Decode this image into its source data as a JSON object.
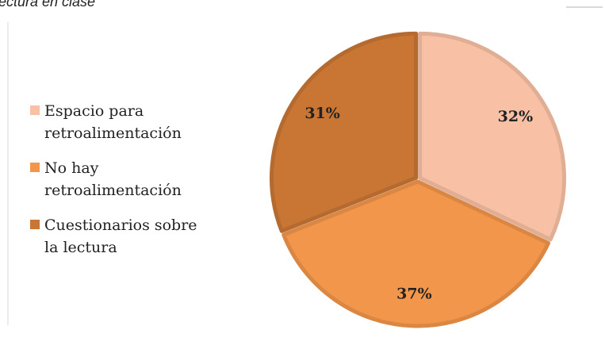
{
  "chart_data": {
    "type": "pie",
    "title": "lectura en clase",
    "categories": [
      "Espacio para retroalimentación",
      "No hay retroalimentación",
      "Cuestionarios sobre la lectura"
    ],
    "legend_lines": [
      [
        "Espacio para",
        "retroalimentación"
      ],
      [
        "No hay",
        "retroalimentación"
      ],
      [
        "Cuestionarios sobre",
        "la lectura"
      ]
    ],
    "values": [
      32,
      37,
      31
    ],
    "value_labels": [
      "32%",
      "37%",
      "31%"
    ],
    "colors": [
      "#f8c1a6",
      "#f2964b",
      "#c97634"
    ],
    "legend": "left"
  }
}
